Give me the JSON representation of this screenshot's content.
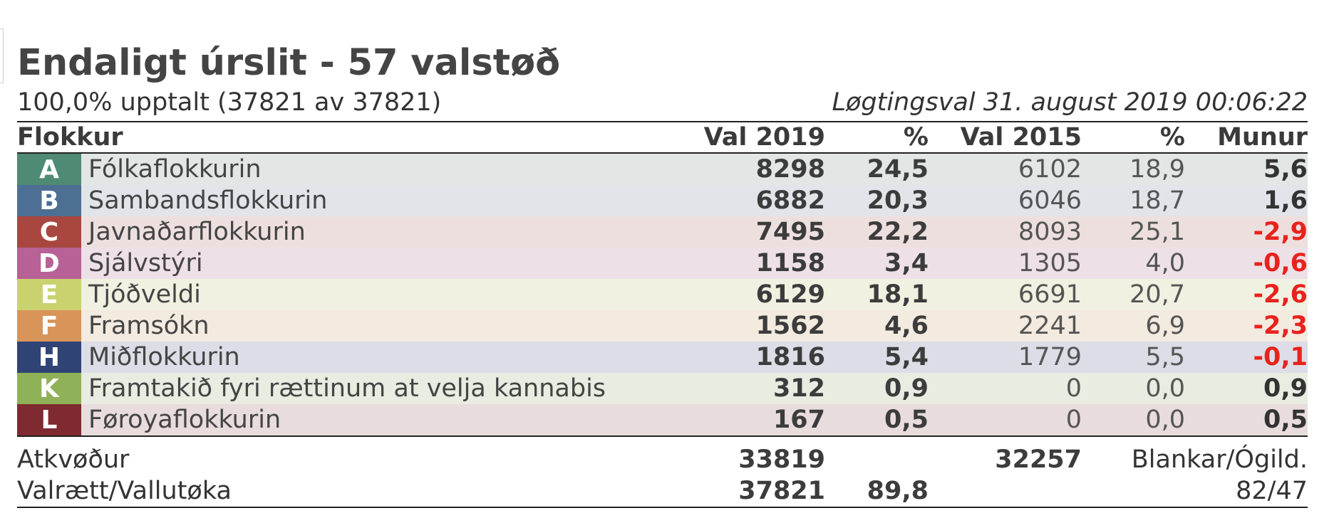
{
  "header": {
    "title": "Endaligt úrslit - 57 valstøð",
    "counted": "100,0% upptalt (37821 av 37821)",
    "election": "Løgtingsval 31. august 2019 00:06:22"
  },
  "columns": {
    "party": "Flokkur",
    "val2019": "Val 2019",
    "pct2019": "%",
    "val2015": "Val 2015",
    "pct2015": "%",
    "diff": "Munur"
  },
  "parties": [
    {
      "letter": "A",
      "name": "Fólkaflokkurin",
      "val2019": "8298",
      "pct2019": "24,5",
      "val2015": "6102",
      "pct2015": "18,9",
      "diff": "5,6",
      "negative": false,
      "color": "#4f8a75",
      "bg": "#e2e6e5"
    },
    {
      "letter": "B",
      "name": "Sambandsflokkurin",
      "val2019": "6882",
      "pct2019": "20,3",
      "val2015": "6046",
      "pct2015": "18,7",
      "diff": "1,6",
      "negative": false,
      "color": "#4d6f93",
      "bg": "#e1e5ea"
    },
    {
      "letter": "C",
      "name": "Javnaðarflokkurin",
      "val2019": "7495",
      "pct2019": "22,2",
      "val2015": "8093",
      "pct2015": "25,1",
      "diff": "-2,9",
      "negative": true,
      "color": "#a8473f",
      "bg": "#eedfdf"
    },
    {
      "letter": "D",
      "name": "Sjálvstýri",
      "val2019": "1158",
      "pct2019": "3,4",
      "val2015": "1305",
      "pct2015": "4,0",
      "diff": "-0,6",
      "negative": true,
      "color": "#b76196",
      "bg": "#eee0e7"
    },
    {
      "letter": "E",
      "name": "Tjóðveldi",
      "val2019": "6129",
      "pct2019": "18,1",
      "val2015": "6691",
      "pct2015": "20,7",
      "diff": "-2,6",
      "negative": true,
      "color": "#c9d26e",
      "bg": "#f1f1e2"
    },
    {
      "letter": "F",
      "name": "Framsókn",
      "val2019": "1562",
      "pct2019": "4,6",
      "val2015": "2241",
      "pct2015": "6,9",
      "diff": "-2,3",
      "negative": true,
      "color": "#d9945a",
      "bg": "#f3eae0"
    },
    {
      "letter": "H",
      "name": "Miðflokkurin",
      "val2019": "1816",
      "pct2019": "5,4",
      "val2015": "1779",
      "pct2015": "5,5",
      "diff": "-0,1",
      "negative": true,
      "color": "#2f4474",
      "bg": "#dcdde6"
    },
    {
      "letter": "K",
      "name": "Framtakið fyri rættinum at velja kannabis",
      "val2019": "312",
      "pct2019": "0,9",
      "val2015": "0",
      "pct2015": "0,0",
      "diff": "0,9",
      "negative": false,
      "color": "#8fb158",
      "bg": "#e8ece1"
    },
    {
      "letter": "L",
      "name": "Føroyaflokkurin",
      "val2019": "167",
      "pct2019": "0,5",
      "val2015": "0",
      "pct2015": "0,0",
      "diff": "0,5",
      "negative": false,
      "color": "#7e2a30",
      "bg": "#e8dcdd"
    }
  ],
  "totals": {
    "votes_label": "Atkvøður",
    "votes_2019": "33819",
    "votes_2015": "32257",
    "blank_label": "Blankar/Ógild.",
    "eligible_label": "Valrætt/Vallutøka",
    "eligible_2019": "37821",
    "turnout_pct": "89,8",
    "blank_values": "82/47"
  }
}
